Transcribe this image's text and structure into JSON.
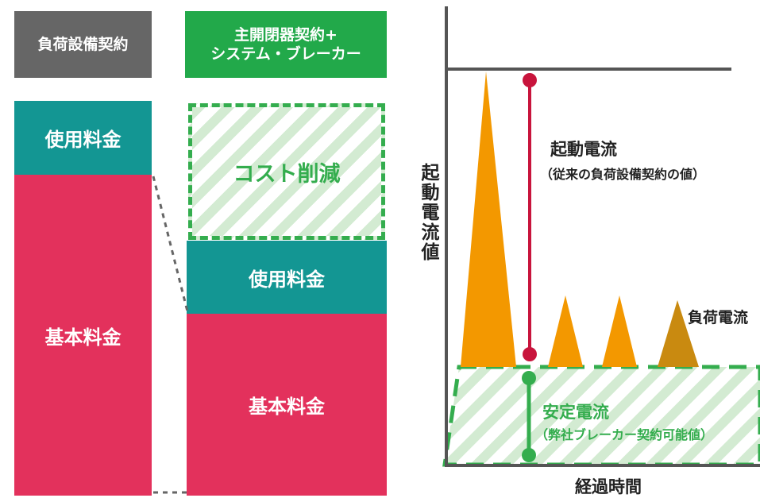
{
  "left": {
    "header1": "負荷設備契約",
    "header2_line1": "主開閉器契約+",
    "header2_line2": "システム・ブレーカー",
    "usage_fee": "使用料金",
    "base_fee": "基本料金",
    "cost_reduction": "コスト削減",
    "usage_fee_2": "使用料金",
    "base_fee_2": "基本料金"
  },
  "right": {
    "y_axis_label": "起動電流値",
    "x_axis_label": "経過時間",
    "startup_current": "起動電流",
    "startup_current_note": "（従来の負荷設備契約の値）",
    "load_current": "負荷電流",
    "stable_current": "安定電流",
    "stable_current_note": "（弊社ブレーカー契約可能値）"
  },
  "colors": {
    "gray": "#666666",
    "green": "#22a94a",
    "teal": "#139693",
    "pink": "#e3315c",
    "orange": "#f39800",
    "dark_orange": "#c98a10",
    "red_line": "#c8143c",
    "hatch_green": "#d3ebd2"
  }
}
